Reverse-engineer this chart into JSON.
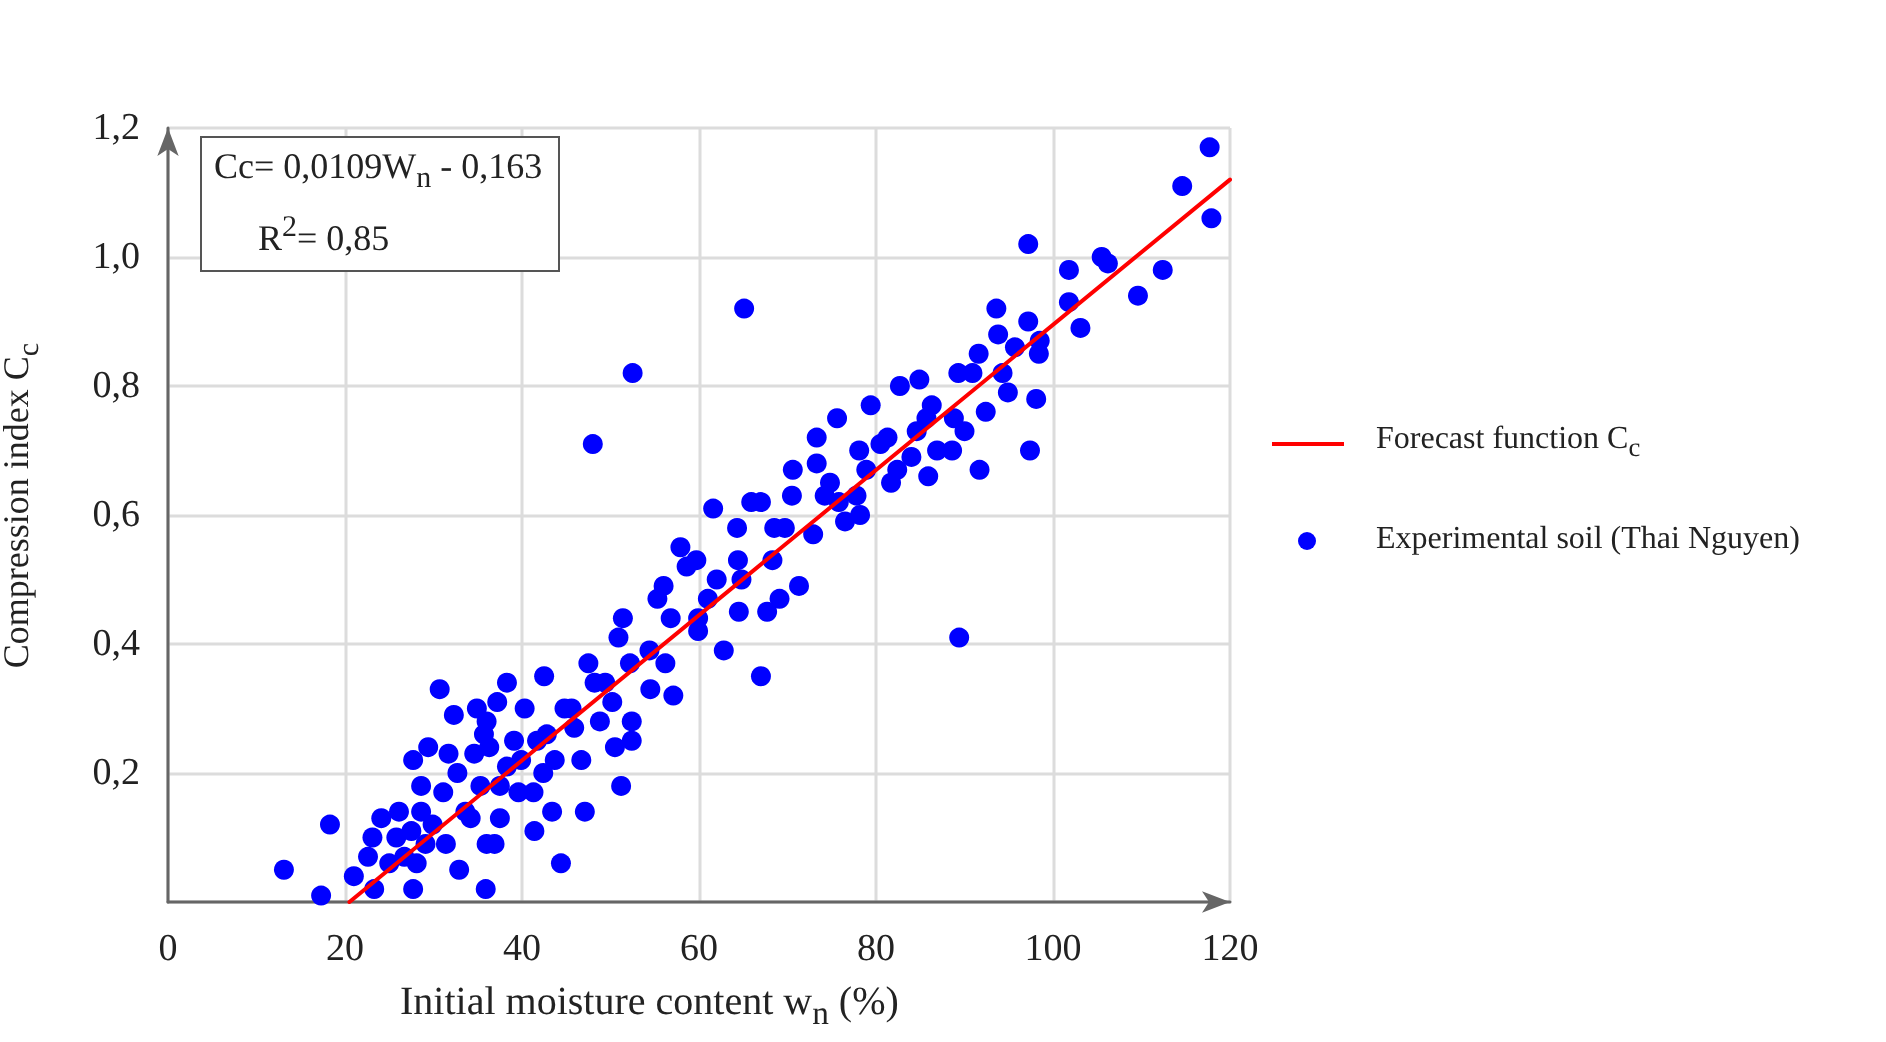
{
  "chart_data": {
    "type": "scatter",
    "xlabel": "Initial moisture content w$_{n}$ (%)",
    "ylabel": "Compression index C$_{c}$",
    "annotations": [
      "Cc= 0,0109W$_{n}$ - 0,163",
      "R$^{2}$= 0,85"
    ],
    "xlim": [
      0,
      120
    ],
    "xticks": [
      0,
      20,
      40,
      60,
      80,
      100,
      120
    ],
    "ylim": [
      0,
      1.2
    ],
    "yticks": [
      {
        "value": 0,
        "label": null
      },
      {
        "value": 0.2,
        "label": "0,2"
      },
      {
        "value": 0.4,
        "label": "0,4"
      },
      {
        "value": 0.6,
        "label": "0,6"
      },
      {
        "value": 0.8,
        "label": "0,8"
      },
      {
        "value": 1.0,
        "label": "1,0"
      },
      {
        "value": 1.2,
        "label": "1,2"
      }
    ],
    "grid": true,
    "legend": "right",
    "series": [
      {
        "name": "Forecast function C$_{c}$",
        "type": "line",
        "color": "#ff0000",
        "marker": "none",
        "line_style": "solid",
        "x": [
          20.5,
          120
        ],
        "values": [
          0,
          1.12
        ]
      },
      {
        "name": "Experimental soil (Thai Nguyen)",
        "color": "#0000ff",
        "marker": "circle",
        "x": [
          13.1,
          17.3,
          18.3,
          21.0,
          22.6,
          23.1,
          23.3,
          24.1,
          25.0,
          25.8,
          26.1,
          26.7,
          27.5,
          27.7,
          27.7,
          28.1,
          28.6,
          28.6,
          29.1,
          29.4,
          29.9,
          30.7,
          31.1,
          31.4,
          31.7,
          32.3,
          32.7,
          32.9,
          33.6,
          34.2,
          34.6,
          34.9,
          35.3,
          35.7,
          36.0,
          35.9,
          36.0,
          36.3,
          36.9,
          37.2,
          37.5,
          37.5,
          38.3,
          38.3,
          39.1,
          39.6,
          39.9,
          40.3,
          41.3,
          41.4,
          41.7,
          42.4,
          42.5,
          42.8,
          43.4,
          43.7,
          44.4,
          44.8,
          45.6,
          45.9,
          46.7,
          47.1,
          47.5,
          48.0,
          48.2,
          48.8,
          49.4,
          50.2,
          50.5,
          50.9,
          51.2,
          51.4,
          52.2,
          52.4,
          52.4,
          52.5,
          54.4,
          54.5,
          55.3,
          56.0,
          56.2,
          56.8,
          57.1,
          57.9,
          58.6,
          59.7,
          59.9,
          59.9,
          61.0,
          61.6,
          62.0,
          62.8,
          64.3,
          64.4,
          64.5,
          64.8,
          65.1,
          65.9,
          67.0,
          67.0,
          67.7,
          68.3,
          68.5,
          69.1,
          69.7,
          70.5,
          70.6,
          71.3,
          72.9,
          73.3,
          73.3,
          74.2,
          74.8,
          75.6,
          75.8,
          76.5,
          77.8,
          78.1,
          78.2,
          78.9,
          79.4,
          80.5,
          81.3,
          81.7,
          82.4,
          82.7,
          84.0,
          84.6,
          84.9,
          85.7,
          85.9,
          86.3,
          86.9,
          88.6,
          88.8,
          89.3,
          89.4,
          90.0,
          90.9,
          91.6,
          91.7,
          92.4,
          93.6,
          93.8,
          94.3,
          94.9,
          95.7,
          97.2,
          97.2,
          97.4,
          98.1,
          98.4,
          98.5,
          101.8,
          101.8,
          103.1,
          105.5,
          106.2,
          109.6,
          112.4,
          114.6,
          117.7,
          117.9
        ],
        "values": [
          0.05,
          0.01,
          0.12,
          0.04,
          0.07,
          0.1,
          0.02,
          0.13,
          0.06,
          0.1,
          0.14,
          0.07,
          0.11,
          0.22,
          0.02,
          0.06,
          0.14,
          0.18,
          0.09,
          0.24,
          0.12,
          0.33,
          0.17,
          0.09,
          0.23,
          0.29,
          0.2,
          0.05,
          0.14,
          0.13,
          0.23,
          0.3,
          0.18,
          0.26,
          0.28,
          0.02,
          0.09,
          0.24,
          0.09,
          0.31,
          0.18,
          0.13,
          0.34,
          0.21,
          0.25,
          0.17,
          0.22,
          0.3,
          0.17,
          0.11,
          0.25,
          0.2,
          0.35,
          0.26,
          0.14,
          0.22,
          0.06,
          0.3,
          0.3,
          0.27,
          0.22,
          0.14,
          0.37,
          0.71,
          0.34,
          0.28,
          0.34,
          0.31,
          0.24,
          0.41,
          0.18,
          0.44,
          0.37,
          0.28,
          0.25,
          0.82,
          0.39,
          0.33,
          0.47,
          0.49,
          0.37,
          0.44,
          0.32,
          0.55,
          0.52,
          0.53,
          0.44,
          0.42,
          0.47,
          0.61,
          0.5,
          0.39,
          0.58,
          0.53,
          0.45,
          0.5,
          0.92,
          0.62,
          0.62,
          0.35,
          0.45,
          0.53,
          0.58,
          0.47,
          0.58,
          0.63,
          0.67,
          0.49,
          0.57,
          0.72,
          0.68,
          0.63,
          0.65,
          0.75,
          0.62,
          0.59,
          0.63,
          0.7,
          0.6,
          0.67,
          0.77,
          0.71,
          0.72,
          0.65,
          0.67,
          0.8,
          0.69,
          0.73,
          0.81,
          0.75,
          0.66,
          0.77,
          0.7,
          0.7,
          0.75,
          0.82,
          0.41,
          0.73,
          0.82,
          0.85,
          0.67,
          0.76,
          0.92,
          0.88,
          0.82,
          0.79,
          0.86,
          1.02,
          0.9,
          0.7,
          0.78,
          0.85,
          0.87,
          0.98,
          0.93,
          0.89,
          1.0,
          0.99,
          0.94,
          0.98,
          1.11,
          1.17,
          1.06
        ]
      }
    ]
  }
}
